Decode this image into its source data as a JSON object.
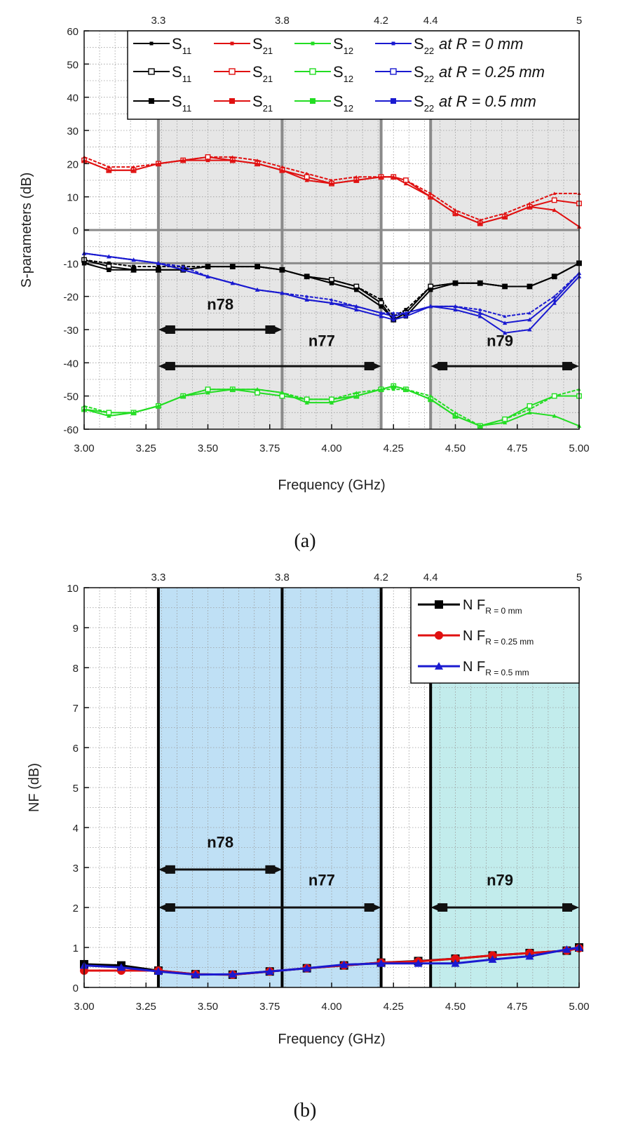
{
  "chart_data": [
    {
      "panel": "a",
      "type": "line",
      "caption": "(a)",
      "xlabel": "Frequency (GHz)",
      "ylabel": "S-parameters (dB)",
      "xlim": [
        3.0,
        5.0
      ],
      "ylim": [
        -60,
        60
      ],
      "x_ticks": [
        "3.00",
        "3.25",
        "3.50",
        "3.75",
        "4.00",
        "4.25",
        "4.50",
        "4.75",
        "5.00"
      ],
      "x_tick_values": [
        3.0,
        3.25,
        3.5,
        3.75,
        4.0,
        4.25,
        4.5,
        4.75,
        5.0
      ],
      "y_ticks": [
        "60",
        "50",
        "40",
        "30",
        "20",
        "10",
        "0",
        "-10",
        "-20",
        "-30",
        "-40",
        "-50",
        "-60"
      ],
      "y_tick_values": [
        60,
        50,
        40,
        30,
        20,
        10,
        0,
        -10,
        -20,
        -30,
        -40,
        -50,
        -60
      ],
      "top_ticks": [
        "3.3",
        "3.8",
        "4.2",
        "4.4",
        "5"
      ],
      "top_tick_values": [
        3.3,
        3.8,
        4.2,
        4.4,
        5.0
      ],
      "grid": true,
      "shaded_regions": [
        [
          3.3,
          4.2
        ],
        [
          4.4,
          5.0
        ]
      ],
      "band_lines": [
        3.3,
        3.8,
        4.2,
        4.4
      ],
      "reference_lines_y": [
        0,
        -10
      ],
      "bands": [
        {
          "label": "n78",
          "from": 3.3,
          "to": 3.8,
          "y": -30,
          "label_x": 3.55,
          "label_y": -24
        },
        {
          "label": "n77",
          "from": 3.3,
          "to": 4.2,
          "y": -41,
          "label_x": 3.96,
          "label_y": -35
        },
        {
          "label": "n79",
          "from": 4.4,
          "to": 5.0,
          "y": -41,
          "label_x": 4.68,
          "label_y": -35
        }
      ],
      "legend_position": "top-right",
      "legend": [
        {
          "s11": "S",
          "s11_sub": "11",
          "s21": "S",
          "s21_sub": "21",
          "s12": "S",
          "s12_sub": "12",
          "s22": "S",
          "s22_sub": "22",
          "label": "at R = 0 mm",
          "marker": "small-filled"
        },
        {
          "s11": "S",
          "s11_sub": "11",
          "s21": "S",
          "s21_sub": "21",
          "s12": "S",
          "s12_sub": "12",
          "s22": "S",
          "s22_sub": "22",
          "label": "at R = 0.25 mm",
          "marker": "open"
        },
        {
          "s11": "S",
          "s11_sub": "11",
          "s21": "S",
          "s21_sub": "21",
          "s12": "S",
          "s12_sub": "12",
          "s22": "S",
          "s22_sub": "22",
          "label": "at R = 0.5 mm",
          "marker": "filled"
        }
      ],
      "colors": {
        "S11": "#000000",
        "S21": "#e01010",
        "S12": "#22dd22",
        "S22": "#1a1ad0"
      },
      "x": [
        3.0,
        3.1,
        3.2,
        3.3,
        3.4,
        3.5,
        3.6,
        3.7,
        3.8,
        3.9,
        4.0,
        4.1,
        4.2,
        4.25,
        4.3,
        4.4,
        4.5,
        4.6,
        4.7,
        4.8,
        4.9,
        5.0
      ],
      "series": [
        {
          "name": "S11 at R = 0 mm",
          "param": "S11",
          "values": [
            -9,
            -10,
            -11,
            -11,
            -11,
            -11,
            -11,
            -11,
            -12,
            -14,
            -15,
            -17,
            -21,
            -26,
            -24,
            -17,
            -16,
            -16,
            -17,
            -17,
            -14,
            -10
          ]
        },
        {
          "name": "S11 at R = 0.25 mm",
          "param": "S11",
          "values": [
            -9,
            -11,
            -12,
            -12,
            -12,
            -11,
            -11,
            -11,
            -12,
            -14,
            -15,
            -17,
            -22,
            -27,
            -25,
            -17,
            -16,
            -16,
            -17,
            -17,
            -14,
            -10
          ]
        },
        {
          "name": "S11 at R = 0.5 mm",
          "param": "S11",
          "values": [
            -10,
            -12,
            -12,
            -12,
            -12,
            -11,
            -11,
            -11,
            -12,
            -14,
            -16,
            -18,
            -23,
            -27,
            -26,
            -18,
            -16,
            -16,
            -17,
            -17,
            -14,
            -10
          ]
        },
        {
          "name": "S21 at R = 0 mm",
          "param": "S21",
          "values": [
            22,
            19,
            19,
            20,
            21,
            22,
            22,
            21,
            19,
            17,
            15,
            16,
            16,
            16,
            15,
            11,
            6,
            3,
            5,
            8,
            11,
            11
          ]
        },
        {
          "name": "S21 at R = 0.25 mm",
          "param": "S21",
          "values": [
            21,
            18,
            18,
            20,
            21,
            22,
            21,
            20,
            18,
            16,
            14,
            15,
            16,
            16,
            15,
            10,
            5,
            2,
            4,
            7,
            9,
            8
          ]
        },
        {
          "name": "S21 at R = 0.5 mm",
          "param": "S21",
          "values": [
            21,
            18,
            18,
            20,
            21,
            21,
            21,
            20,
            18,
            15,
            14,
            15,
            16,
            16,
            14,
            10,
            5,
            2,
            4,
            7,
            6,
            1
          ]
        },
        {
          "name": "S12 at R = 0 mm",
          "param": "S12",
          "values": [
            -53,
            -55,
            -55,
            -53,
            -50,
            -48,
            -48,
            -48,
            -49,
            -51,
            -51,
            -49,
            -48,
            -48,
            -48,
            -50,
            -55,
            -59,
            -57,
            -54,
            -50,
            -48
          ]
        },
        {
          "name": "S12 at R = 0.25 mm",
          "param": "S12",
          "values": [
            -54,
            -55,
            -55,
            -53,
            -50,
            -48,
            -48,
            -49,
            -50,
            -51,
            -51,
            -50,
            -48,
            -47,
            -48,
            -51,
            -56,
            -59,
            -57,
            -53,
            -50,
            -50
          ]
        },
        {
          "name": "S12 at R = 0.5 mm",
          "param": "S12",
          "values": [
            -54,
            -56,
            -55,
            -53,
            -50,
            -49,
            -48,
            -48,
            -49,
            -52,
            -52,
            -50,
            -48,
            -47,
            -48,
            -51,
            -56,
            -59,
            -58,
            -55,
            -56,
            -59
          ]
        },
        {
          "name": "S22 at R = 0 mm",
          "param": "S22",
          "values": [
            -7,
            -8,
            -9,
            -10,
            -11,
            -14,
            -16,
            -18,
            -19,
            -20,
            -21,
            -23,
            -25,
            -25,
            -25,
            -23,
            -23,
            -24,
            -26,
            -25,
            -20,
            -13
          ]
        },
        {
          "name": "S22 at R = 0.25 mm",
          "param": "S22",
          "values": [
            -7,
            -8,
            -9,
            -10,
            -12,
            -14,
            -16,
            -18,
            -19,
            -21,
            -22,
            -23,
            -25,
            -26,
            -25,
            -23,
            -23,
            -25,
            -28,
            -27,
            -21,
            -13
          ]
        },
        {
          "name": "S22 at R = 0.5 mm",
          "param": "S22",
          "values": [
            -7,
            -8,
            -9,
            -10,
            -12,
            -14,
            -16,
            -18,
            -19,
            -21,
            -22,
            -24,
            -26,
            -27,
            -26,
            -23,
            -24,
            -26,
            -31,
            -30,
            -22,
            -14
          ]
        }
      ]
    },
    {
      "panel": "b",
      "type": "line",
      "caption": "(b)",
      "xlabel": "Frequency (GHz)",
      "ylabel": "NF (dB)",
      "xlim": [
        3.0,
        5.0
      ],
      "ylim": [
        0,
        10
      ],
      "x_ticks": [
        "3.00",
        "3.25",
        "3.50",
        "3.75",
        "4.00",
        "4.25",
        "4.50",
        "4.75",
        "5.00"
      ],
      "x_tick_values": [
        3.0,
        3.25,
        3.5,
        3.75,
        4.0,
        4.25,
        4.5,
        4.75,
        5.0
      ],
      "y_ticks": [
        "10",
        "9",
        "8",
        "7",
        "6",
        "5",
        "4",
        "3",
        "2",
        "1",
        "0"
      ],
      "y_tick_values": [
        10,
        9,
        8,
        7,
        6,
        5,
        4,
        3,
        2,
        1,
        0
      ],
      "top_ticks": [
        "3.3",
        "3.8",
        "4.2",
        "4.4",
        "5"
      ],
      "top_tick_values": [
        3.3,
        3.8,
        4.2,
        4.4,
        5.0
      ],
      "grid": true,
      "shaded_regions": [
        {
          "from": 3.3,
          "to": 4.2,
          "color": "#bfe0f5"
        },
        {
          "from": 4.4,
          "to": 5.0,
          "color": "#c2ecec"
        }
      ],
      "band_lines": [
        3.3,
        3.8,
        4.2,
        4.4
      ],
      "bands": [
        {
          "label": "n78",
          "from": 3.3,
          "to": 3.8,
          "y": 2.95,
          "label_x": 3.55,
          "label_y": 3.5
        },
        {
          "label": "n77",
          "from": 3.3,
          "to": 4.2,
          "y": 2.0,
          "label_x": 3.96,
          "label_y": 2.55
        },
        {
          "label": "n79",
          "from": 4.4,
          "to": 5.0,
          "y": 2.0,
          "label_x": 4.68,
          "label_y": 2.55
        }
      ],
      "legend_position": "top-right",
      "legend": [
        {
          "label": "N F",
          "sub": "R = 0 mm",
          "color": "#000000",
          "marker": "square"
        },
        {
          "label": "N F",
          "sub": "R = 0.25 mm",
          "color": "#e01010",
          "marker": "circle"
        },
        {
          "label": "N F",
          "sub": "R = 0.5 mm",
          "color": "#1a1ad0",
          "marker": "triangle"
        }
      ],
      "x": [
        3.0,
        3.15,
        3.3,
        3.45,
        3.6,
        3.75,
        3.9,
        4.05,
        4.2,
        4.35,
        4.5,
        4.65,
        4.8,
        4.95,
        5.0
      ],
      "series": [
        {
          "name": "NF R = 0 mm",
          "color": "#000000",
          "values": [
            0.58,
            0.55,
            0.42,
            0.33,
            0.32,
            0.4,
            0.48,
            0.55,
            0.62,
            0.66,
            0.72,
            0.8,
            0.86,
            0.92,
            1.0
          ]
        },
        {
          "name": "NF R = 0.25 mm",
          "color": "#e01010",
          "values": [
            0.42,
            0.42,
            0.42,
            0.33,
            0.32,
            0.4,
            0.48,
            0.55,
            0.62,
            0.65,
            0.72,
            0.8,
            0.86,
            0.92,
            0.98
          ]
        },
        {
          "name": "NF R = 0.5 mm",
          "color": "#1a1ad0",
          "values": [
            0.55,
            0.5,
            0.4,
            0.32,
            0.33,
            0.4,
            0.48,
            0.57,
            0.6,
            0.6,
            0.6,
            0.7,
            0.78,
            0.95,
            1.0
          ]
        }
      ]
    }
  ]
}
